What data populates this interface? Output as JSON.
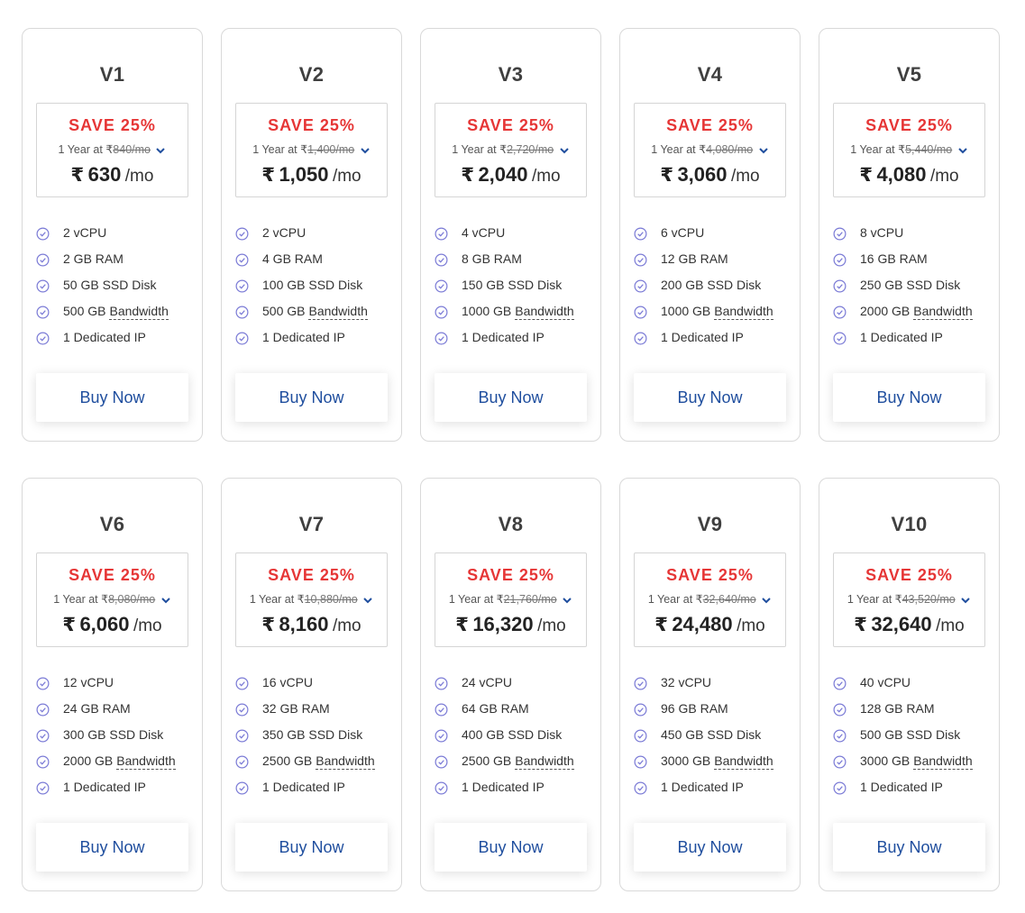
{
  "currency_symbol": "₹",
  "accent": {
    "save": "#e63636",
    "buy": "#1f4e9e",
    "check": "#7b7bd6"
  },
  "plans": [
    {
      "name": "V1",
      "save": "SAVE 25%",
      "term": "1 Year at",
      "old_price": "840/mo",
      "price": "630",
      "per": "/mo",
      "features": {
        "cpu": "2 vCPU",
        "ram": "2 GB RAM",
        "disk": "50 GB SSD Disk",
        "bw_amount": "500 GB",
        "bw_label": "Bandwidth",
        "ip": "1 Dedicated IP"
      },
      "buy": "Buy Now"
    },
    {
      "name": "V2",
      "save": "SAVE 25%",
      "term": "1 Year at",
      "old_price": "1,400/mo",
      "price": "1,050",
      "per": "/mo",
      "features": {
        "cpu": "2 vCPU",
        "ram": "4 GB RAM",
        "disk": "100 GB SSD Disk",
        "bw_amount": "500 GB",
        "bw_label": "Bandwidth",
        "ip": "1 Dedicated IP"
      },
      "buy": "Buy Now"
    },
    {
      "name": "V3",
      "save": "SAVE 25%",
      "term": "1 Year at",
      "old_price": "2,720/mo",
      "price": "2,040",
      "per": "/mo",
      "features": {
        "cpu": "4 vCPU",
        "ram": "8 GB RAM",
        "disk": "150 GB SSD Disk",
        "bw_amount": "1000 GB",
        "bw_label": "Bandwidth",
        "ip": "1 Dedicated IP"
      },
      "buy": "Buy Now"
    },
    {
      "name": "V4",
      "save": "SAVE 25%",
      "term": "1 Year at",
      "old_price": "4,080/mo",
      "price": "3,060",
      "per": "/mo",
      "features": {
        "cpu": "6 vCPU",
        "ram": "12 GB RAM",
        "disk": "200 GB SSD Disk",
        "bw_amount": "1000 GB",
        "bw_label": "Bandwidth",
        "ip": "1 Dedicated IP"
      },
      "buy": "Buy Now"
    },
    {
      "name": "V5",
      "save": "SAVE 25%",
      "term": "1 Year at",
      "old_price": "5,440/mo",
      "price": "4,080",
      "per": "/mo",
      "features": {
        "cpu": "8 vCPU",
        "ram": "16 GB RAM",
        "disk": "250 GB SSD Disk",
        "bw_amount": "2000 GB",
        "bw_label": "Bandwidth",
        "ip": "1 Dedicated IP"
      },
      "buy": "Buy Now"
    },
    {
      "name": "V6",
      "save": "SAVE 25%",
      "term": "1 Year at",
      "old_price": "8,080/mo",
      "price": "6,060",
      "per": "/mo",
      "features": {
        "cpu": "12 vCPU",
        "ram": "24 GB RAM",
        "disk": "300 GB SSD Disk",
        "bw_amount": "2000 GB",
        "bw_label": "Bandwidth",
        "ip": "1 Dedicated IP"
      },
      "buy": "Buy Now"
    },
    {
      "name": "V7",
      "save": "SAVE 25%",
      "term": "1 Year at",
      "old_price": "10,880/mo",
      "price": "8,160",
      "per": "/mo",
      "features": {
        "cpu": "16 vCPU",
        "ram": "32 GB RAM",
        "disk": "350 GB SSD Disk",
        "bw_amount": "2500 GB",
        "bw_label": "Bandwidth",
        "ip": "1 Dedicated IP"
      },
      "buy": "Buy Now"
    },
    {
      "name": "V8",
      "save": "SAVE 25%",
      "term": "1 Year at",
      "old_price": "21,760/mo",
      "price": "16,320",
      "per": "/mo",
      "features": {
        "cpu": "24 vCPU",
        "ram": "64 GB RAM",
        "disk": "400 GB SSD Disk",
        "bw_amount": "2500 GB",
        "bw_label": "Bandwidth",
        "ip": "1 Dedicated IP"
      },
      "buy": "Buy Now"
    },
    {
      "name": "V9",
      "save": "SAVE 25%",
      "term": "1 Year at",
      "old_price": "32,640/mo",
      "price": "24,480",
      "per": "/mo",
      "features": {
        "cpu": "32 vCPU",
        "ram": "96 GB RAM",
        "disk": "450 GB SSD Disk",
        "bw_amount": "3000 GB",
        "bw_label": "Bandwidth",
        "ip": "1 Dedicated IP"
      },
      "buy": "Buy Now"
    },
    {
      "name": "V10",
      "save": "SAVE 25%",
      "term": "1 Year at",
      "old_price": "43,520/mo",
      "price": "32,640",
      "per": "/mo",
      "features": {
        "cpu": "40 vCPU",
        "ram": "128 GB RAM",
        "disk": "500 GB SSD Disk",
        "bw_amount": "3000 GB",
        "bw_label": "Bandwidth",
        "ip": "1 Dedicated IP"
      },
      "buy": "Buy Now"
    }
  ]
}
